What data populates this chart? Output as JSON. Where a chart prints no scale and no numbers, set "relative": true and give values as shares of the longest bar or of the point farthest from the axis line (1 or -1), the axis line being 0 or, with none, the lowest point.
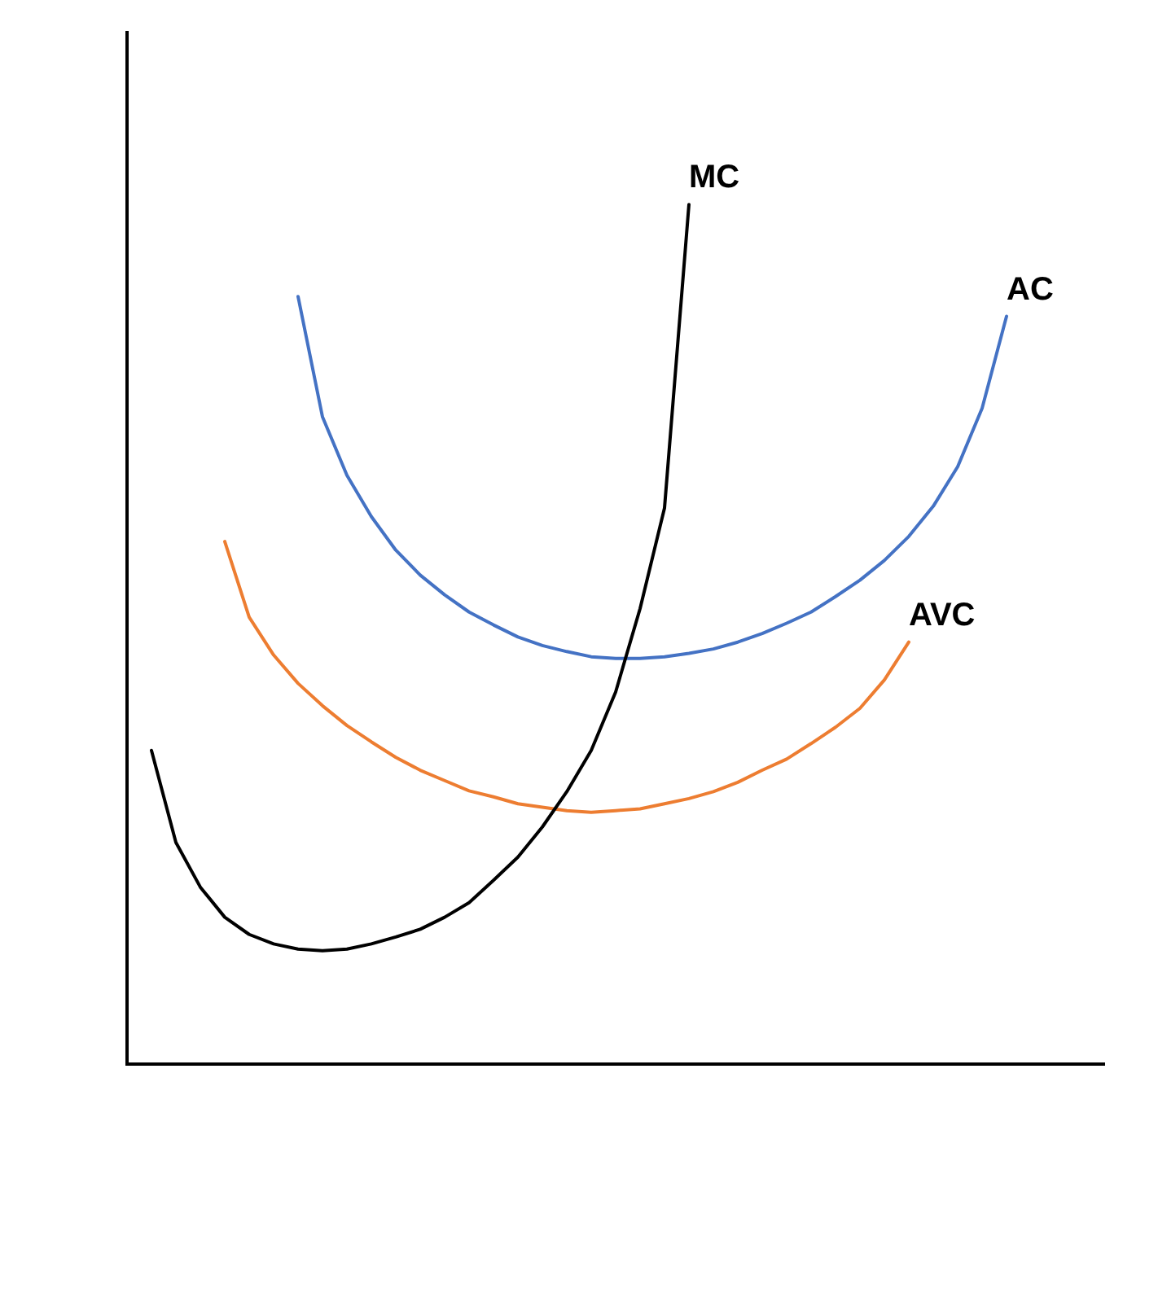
{
  "chart_data": {
    "type": "line",
    "relative": true,
    "grid": false,
    "legend": false,
    "marker": "none",
    "line_style": "solid",
    "categories": [
      null,
      null,
      null,
      null,
      null,
      null,
      null,
      null,
      null,
      null,
      null,
      null,
      null,
      null,
      null,
      null,
      null,
      null,
      null,
      null,
      null,
      null,
      null,
      null,
      null,
      null,
      null,
      null,
      null,
      null,
      null,
      null,
      null,
      null,
      null,
      null,
      null,
      null,
      null,
      null,
      null
    ],
    "series": [
      {
        "name": "MC",
        "color": "#000000",
        "values": [
          null,
          0.365,
          0.258,
          0.206,
          0.171,
          0.151,
          0.14,
          0.134,
          0.132,
          0.134,
          0.14,
          0.148,
          0.157,
          0.171,
          0.188,
          0.214,
          0.241,
          0.276,
          0.317,
          0.365,
          0.433,
          0.53,
          0.647,
          1,
          null,
          null,
          null,
          null,
          null,
          null,
          null,
          null,
          null,
          null,
          null,
          null,
          null,
          null,
          null,
          null,
          null
        ]
      },
      {
        "name": "AC",
        "color": "#4472c4",
        "values": [
          null,
          null,
          null,
          null,
          null,
          null,
          null,
          0.893,
          0.753,
          0.685,
          0.637,
          0.598,
          0.569,
          0.546,
          0.526,
          0.511,
          0.497,
          0.487,
          0.48,
          0.474,
          0.472,
          0.472,
          0.474,
          0.478,
          0.483,
          0.491,
          0.501,
          0.513,
          0.526,
          0.544,
          0.563,
          0.586,
          0.614,
          0.649,
          0.695,
          0.763,
          0.87,
          null,
          null,
          null,
          null
        ]
      },
      {
        "name": "AVC",
        "color": "#ed7d31",
        "values": [
          null,
          null,
          null,
          null,
          0.608,
          0.52,
          0.476,
          0.443,
          0.417,
          0.394,
          0.375,
          0.357,
          0.342,
          0.33,
          0.318,
          0.311,
          0.303,
          0.299,
          0.295,
          0.293,
          0.295,
          0.297,
          0.303,
          0.309,
          0.317,
          0.328,
          0.342,
          0.355,
          0.373,
          0.392,
          0.414,
          0.447,
          0.491,
          null,
          null,
          null,
          null,
          null,
          null,
          null,
          null
        ]
      }
    ]
  }
}
